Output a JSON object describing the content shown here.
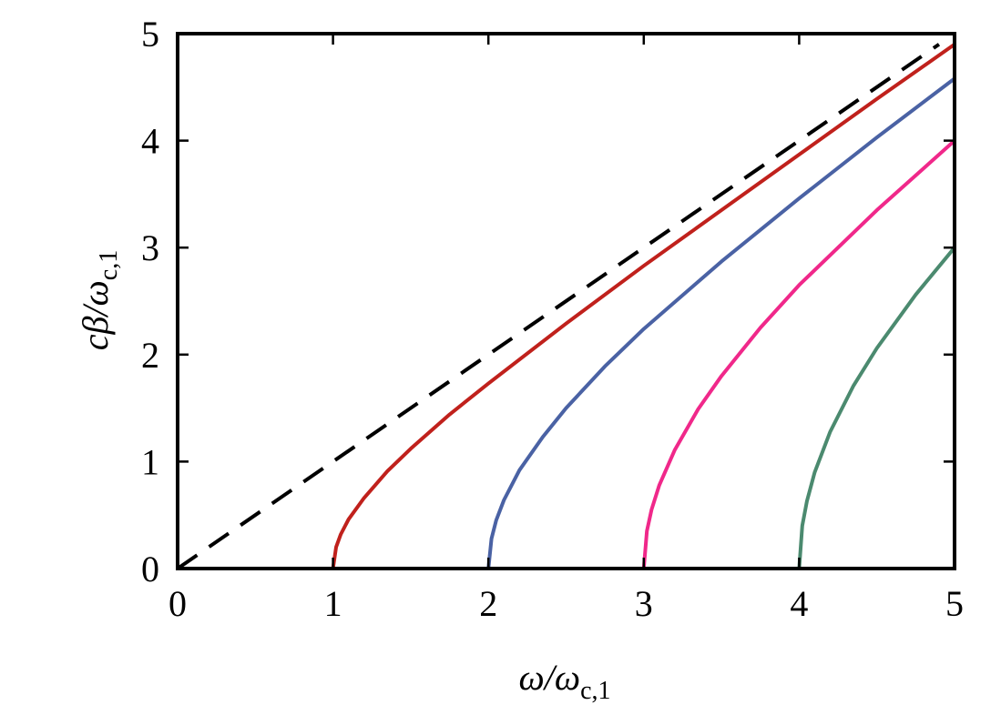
{
  "chart_data": {
    "type": "line",
    "xlabel": "ω/ω",
    "xlabel_sub": "c,1",
    "ylabel": "cβ/ω",
    "ylabel_sub": "c,1",
    "xlim": [
      0,
      5
    ],
    "ylim": [
      0,
      5
    ],
    "xticks": [
      0,
      1,
      2,
      3,
      4,
      5
    ],
    "yticks": [
      0,
      1,
      2,
      3,
      4,
      5
    ],
    "grid": false,
    "series": [
      {
        "color": "#000000",
        "linestyle": "dashed",
        "x": [
          0,
          4.9
        ],
        "values": [
          0,
          4.9
        ]
      },
      {
        "color": "#c0211c",
        "linestyle": "solid",
        "x": [
          1,
          1.02,
          1.05,
          1.1,
          1.2,
          1.35,
          1.5,
          1.75,
          2,
          2.5,
          3,
          3.5,
          4,
          4.5,
          5
        ],
        "values": [
          0,
          0.2,
          0.32,
          0.46,
          0.66,
          0.91,
          1.12,
          1.44,
          1.73,
          2.29,
          2.83,
          3.35,
          3.87,
          4.39,
          4.9
        ]
      },
      {
        "color": "#4a62a4",
        "linestyle": "solid",
        "x": [
          2,
          2.02,
          2.05,
          2.1,
          2.2,
          2.35,
          2.5,
          2.75,
          3,
          3.5,
          4,
          4.5,
          5
        ],
        "values": [
          0,
          0.28,
          0.45,
          0.64,
          0.92,
          1.23,
          1.5,
          1.89,
          2.24,
          2.87,
          3.46,
          4.03,
          4.58
        ]
      },
      {
        "color": "#f0288a",
        "linestyle": "solid",
        "x": [
          3,
          3.02,
          3.05,
          3.1,
          3.2,
          3.35,
          3.5,
          3.75,
          4,
          4.5,
          5
        ],
        "values": [
          0,
          0.35,
          0.55,
          0.78,
          1.11,
          1.49,
          1.8,
          2.25,
          2.65,
          3.35,
          4
        ]
      },
      {
        "color": "#4b8a6f",
        "linestyle": "solid",
        "x": [
          4,
          4.02,
          4.05,
          4.1,
          4.2,
          4.35,
          4.5,
          4.75,
          5
        ],
        "values": [
          0,
          0.4,
          0.63,
          0.9,
          1.28,
          1.71,
          2.06,
          2.56,
          3
        ]
      }
    ]
  }
}
